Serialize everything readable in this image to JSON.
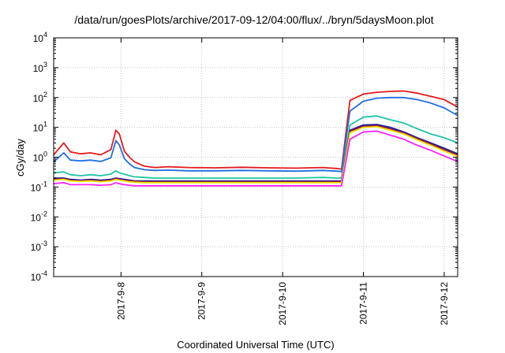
{
  "chart_data": {
    "type": "line",
    "title": "/data/run/goesPlots/archive/2017-09-12/04:00/flux/../bryn/5daysMoon.plot",
    "xlabel": "Coordinated Universal Time (UTC)",
    "ylabel": "cGy/day",
    "yscale": "log",
    "ylim": [
      0.0001,
      10000
    ],
    "xlim": [
      "2017-09-07 04:00",
      "2017-09-12 04:00"
    ],
    "grid": true,
    "x_tick_labels": [
      "2017-9-8",
      "2017-9-9",
      "2017-9-10",
      "2017-9-11",
      "2017-9-12"
    ],
    "x_ticks": [
      "2017-09-08 00:00",
      "2017-09-09 00:00",
      "2017-09-10 00:00",
      "2017-09-11 00:00",
      "2017-09-12 00:00"
    ],
    "y_ticks": [
      {
        "value": 0.0001,
        "base": "10",
        "exp": "-4"
      },
      {
        "value": 0.001,
        "base": "10",
        "exp": "-3"
      },
      {
        "value": 0.01,
        "base": "10",
        "exp": "-2"
      },
      {
        "value": 0.1,
        "base": "10",
        "exp": "-1"
      },
      {
        "value": 1,
        "base": "10",
        "exp": "0"
      },
      {
        "value": 10,
        "base": "10",
        "exp": "1"
      },
      {
        "value": 100,
        "base": "10",
        "exp": "2"
      },
      {
        "value": 1000,
        "base": "10",
        "exp": "3"
      },
      {
        "value": 10000,
        "base": "10",
        "exp": "4"
      }
    ],
    "x": [
      "2017-09-07 04:00",
      "2017-09-07 07:00",
      "2017-09-07 09:00",
      "2017-09-07 12:00",
      "2017-09-07 15:00",
      "2017-09-07 18:00",
      "2017-09-07 21:00",
      "2017-09-07 22:30",
      "2017-09-07 23:30",
      "2017-09-08 01:00",
      "2017-09-08 02:30",
      "2017-09-08 04:00",
      "2017-09-08 07:00",
      "2017-09-08 10:00",
      "2017-09-08 14:00",
      "2017-09-08 20:00",
      "2017-09-09 04:00",
      "2017-09-09 12:00",
      "2017-09-09 20:00",
      "2017-09-10 04:00",
      "2017-09-10 12:00",
      "2017-09-10 16:00",
      "2017-09-10 17:30",
      "2017-09-10 20:00",
      "2017-09-11 00:00",
      "2017-09-11 04:00",
      "2017-09-11 08:00",
      "2017-09-11 12:00",
      "2017-09-11 16:00",
      "2017-09-11 20:00",
      "2017-09-12 00:00",
      "2017-09-12 04:00"
    ],
    "series": [
      {
        "color": "#e41a1c",
        "values": [
          1.2,
          3.0,
          1.5,
          1.3,
          1.4,
          1.2,
          1.8,
          8.0,
          6.0,
          1.6,
          1.0,
          0.7,
          0.5,
          0.45,
          0.48,
          0.45,
          0.44,
          0.46,
          0.44,
          0.43,
          0.45,
          0.42,
          0.4,
          80,
          130,
          150,
          160,
          165,
          140,
          110,
          85,
          48
        ]
      },
      {
        "color": "#1f6fe0",
        "values": [
          0.7,
          1.4,
          0.8,
          0.75,
          0.8,
          0.72,
          0.95,
          3.6,
          2.6,
          0.9,
          0.6,
          0.45,
          0.38,
          0.36,
          0.37,
          0.35,
          0.35,
          0.36,
          0.35,
          0.34,
          0.36,
          0.34,
          0.33,
          35,
          75,
          95,
          100,
          100,
          85,
          65,
          45,
          25
        ]
      },
      {
        "color": "#20c4a8",
        "values": [
          0.3,
          0.32,
          0.26,
          0.24,
          0.26,
          0.24,
          0.27,
          0.35,
          0.3,
          0.27,
          0.24,
          0.22,
          0.21,
          0.2,
          0.2,
          0.2,
          0.2,
          0.2,
          0.2,
          0.2,
          0.21,
          0.2,
          0.2,
          12,
          22,
          24,
          18,
          14,
          9,
          6,
          4.5,
          3.0
        ]
      },
      {
        "color": "#1e1ea8",
        "values": [
          0.2,
          0.2,
          0.18,
          0.17,
          0.18,
          0.17,
          0.18,
          0.2,
          0.19,
          0.18,
          0.17,
          0.16,
          0.16,
          0.16,
          0.16,
          0.16,
          0.16,
          0.16,
          0.16,
          0.16,
          0.16,
          0.16,
          0.16,
          8,
          12,
          12.5,
          10,
          7,
          4.5,
          3,
          2.0,
          1.3
        ]
      },
      {
        "color": "#8b1a3a",
        "values": [
          0.18,
          0.19,
          0.17,
          0.16,
          0.17,
          0.16,
          0.17,
          0.19,
          0.18,
          0.17,
          0.16,
          0.155,
          0.15,
          0.15,
          0.15,
          0.15,
          0.15,
          0.15,
          0.15,
          0.15,
          0.15,
          0.15,
          0.15,
          7.5,
          11,
          11.5,
          9,
          6.5,
          4.2,
          2.8,
          1.8,
          1.2
        ]
      },
      {
        "color": "#f0e000",
        "values": [
          0.17,
          0.18,
          0.16,
          0.155,
          0.16,
          0.15,
          0.16,
          0.18,
          0.17,
          0.16,
          0.15,
          0.145,
          0.14,
          0.14,
          0.14,
          0.14,
          0.14,
          0.14,
          0.14,
          0.14,
          0.14,
          0.14,
          0.14,
          6.5,
          10,
          10.5,
          8,
          6,
          3.8,
          2.5,
          1.6,
          1.05
        ]
      },
      {
        "color": "#ff22ff",
        "values": [
          0.13,
          0.14,
          0.12,
          0.12,
          0.12,
          0.115,
          0.12,
          0.14,
          0.13,
          0.12,
          0.115,
          0.11,
          0.11,
          0.11,
          0.11,
          0.11,
          0.11,
          0.11,
          0.11,
          0.11,
          0.11,
          0.11,
          0.11,
          4,
          7,
          7.5,
          5.5,
          4,
          2.5,
          1.7,
          1.1,
          0.72
        ]
      }
    ]
  }
}
